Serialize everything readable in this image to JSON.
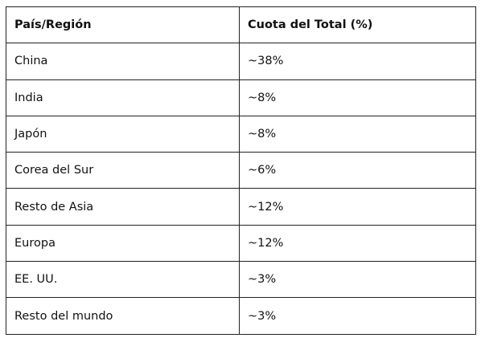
{
  "table": {
    "header": [
      "País/Región",
      "Cuota del Total (%)"
    ],
    "rows": [
      [
        "China",
        "~38%"
      ],
      [
        "India",
        "~8%"
      ],
      [
        "Japón",
        "~8%"
      ],
      [
        "Corea del Sur",
        "~6%"
      ],
      [
        "Resto de Asia",
        "~12%"
      ],
      [
        "Europa",
        "~12%"
      ],
      [
        "EE. UU.",
        "~3%"
      ],
      [
        "Resto del mundo",
        "~3%"
      ]
    ]
  }
}
